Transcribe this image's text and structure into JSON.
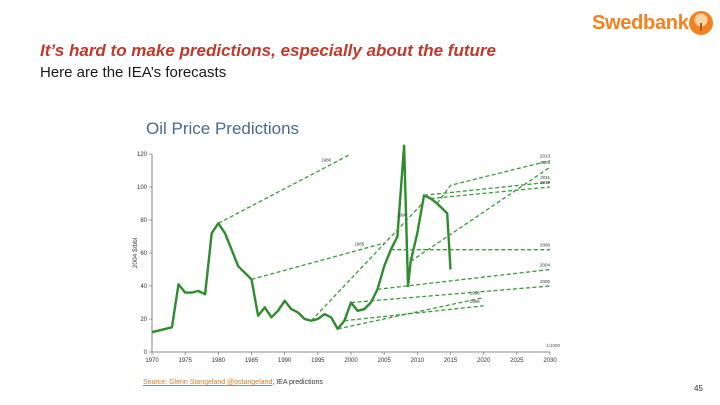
{
  "brand": {
    "name": "Swedbank",
    "color": "#f5811f",
    "icon": "oak-tree-logo-icon"
  },
  "slide": {
    "title": "It’s hard to make predictions, especially about the future",
    "subtitle": "Here are the IEA’s forecasts",
    "title_color": "#c0392b",
    "page_number": "45"
  },
  "footer": {
    "source_link": "Source: Glenn Stangeland @ostangeland",
    "source_rest": ", IEA predictions"
  },
  "chart_data": {
    "type": "line",
    "title": "Oil Price Predictions",
    "ylabel": "2004 $/bbl",
    "xlabel": "",
    "xlim": [
      1970,
      2030
    ],
    "ylim": [
      0,
      120
    ],
    "x_ticks": [
      1970,
      1975,
      1980,
      1985,
      1990,
      1995,
      2000,
      2005,
      2010,
      2015,
      2020,
      2025,
      2030
    ],
    "y_ticks": [
      0,
      20,
      40,
      60,
      80,
      100,
      120
    ],
    "grid": false,
    "corner_note": "1/1000",
    "colors": {
      "actual": "#2e8b2e",
      "forecast": "#3a9a3a"
    },
    "series": [
      {
        "style": "solid",
        "values": [
          [
            1970,
            12
          ],
          [
            1971,
            13
          ],
          [
            1972,
            14
          ],
          [
            1973,
            15
          ],
          [
            1974,
            41
          ],
          [
            1975,
            36
          ],
          [
            1976,
            36
          ],
          [
            1977,
            37
          ],
          [
            1978,
            35
          ],
          [
            1979,
            72
          ],
          [
            1980,
            78
          ],
          [
            1981,
            72
          ],
          [
            1982,
            62
          ],
          [
            1983,
            52
          ],
          [
            1984,
            48
          ],
          [
            1985,
            44
          ],
          [
            1986,
            22
          ],
          [
            1987,
            27
          ],
          [
            1988,
            21
          ],
          [
            1989,
            25
          ],
          [
            1990,
            31
          ],
          [
            1991,
            26
          ],
          [
            1992,
            24
          ],
          [
            1993,
            20
          ],
          [
            1994,
            19
          ],
          [
            1995,
            20
          ],
          [
            1996,
            23
          ],
          [
            1997,
            21
          ],
          [
            1998,
            14
          ],
          [
            1999,
            19
          ],
          [
            2000,
            30
          ],
          [
            2001,
            25
          ],
          [
            2002,
            26
          ],
          [
            2003,
            30
          ],
          [
            2004,
            38
          ],
          [
            2005,
            52
          ],
          [
            2006,
            62
          ],
          [
            2007,
            70
          ],
          [
            2008,
            125
          ],
          [
            2008.6,
            40
          ],
          [
            2009,
            55
          ],
          [
            2010,
            72
          ],
          [
            2011,
            95
          ],
          [
            2012,
            93
          ],
          [
            2013,
            90
          ],
          [
            2014,
            86
          ],
          [
            2014.5,
            84
          ],
          [
            2015,
            50
          ]
        ]
      },
      {
        "label": "1980",
        "style": "dashed",
        "values": [
          [
            1980,
            78
          ],
          [
            2000,
            120
          ]
        ]
      },
      {
        "label": "1985",
        "style": "dashed",
        "values": [
          [
            1985,
            44
          ],
          [
            2005,
            66
          ]
        ]
      },
      {
        "label": "1994",
        "style": "dashed",
        "values": [
          [
            1994,
            19
          ],
          [
            2011,
            91
          ]
        ]
      },
      {
        "label": "1998",
        "style": "dashed",
        "values": [
          [
            1998,
            14
          ],
          [
            2020,
            33
          ]
        ]
      },
      {
        "label": "1999",
        "style": "dashed",
        "values": [
          [
            1999,
            19
          ],
          [
            2020,
            28
          ]
        ]
      },
      {
        "label": "2000",
        "style": "dashed",
        "values": [
          [
            2000,
            30
          ],
          [
            2030,
            40
          ]
        ]
      },
      {
        "label": "2004",
        "style": "dashed",
        "values": [
          [
            2004,
            38
          ],
          [
            2030,
            50
          ]
        ]
      },
      {
        "label": "2006",
        "style": "dashed",
        "values": [
          [
            2006,
            62
          ],
          [
            2030,
            62
          ]
        ]
      },
      {
        "label": "2009",
        "style": "dashed",
        "values": [
          [
            2009,
            55
          ],
          [
            2030,
            112
          ]
        ]
      },
      {
        "label": "2011",
        "style": "dashed",
        "values": [
          [
            2011,
            95
          ],
          [
            2030,
            103
          ]
        ]
      },
      {
        "label": "2012",
        "style": "dashed",
        "values": [
          [
            2012,
            93
          ],
          [
            2030,
            100
          ]
        ]
      },
      {
        "label": "2013",
        "style": "dashed",
        "values": [
          [
            2013,
            90
          ],
          [
            2015,
            101
          ],
          [
            2030,
            116
          ]
        ]
      }
    ]
  }
}
